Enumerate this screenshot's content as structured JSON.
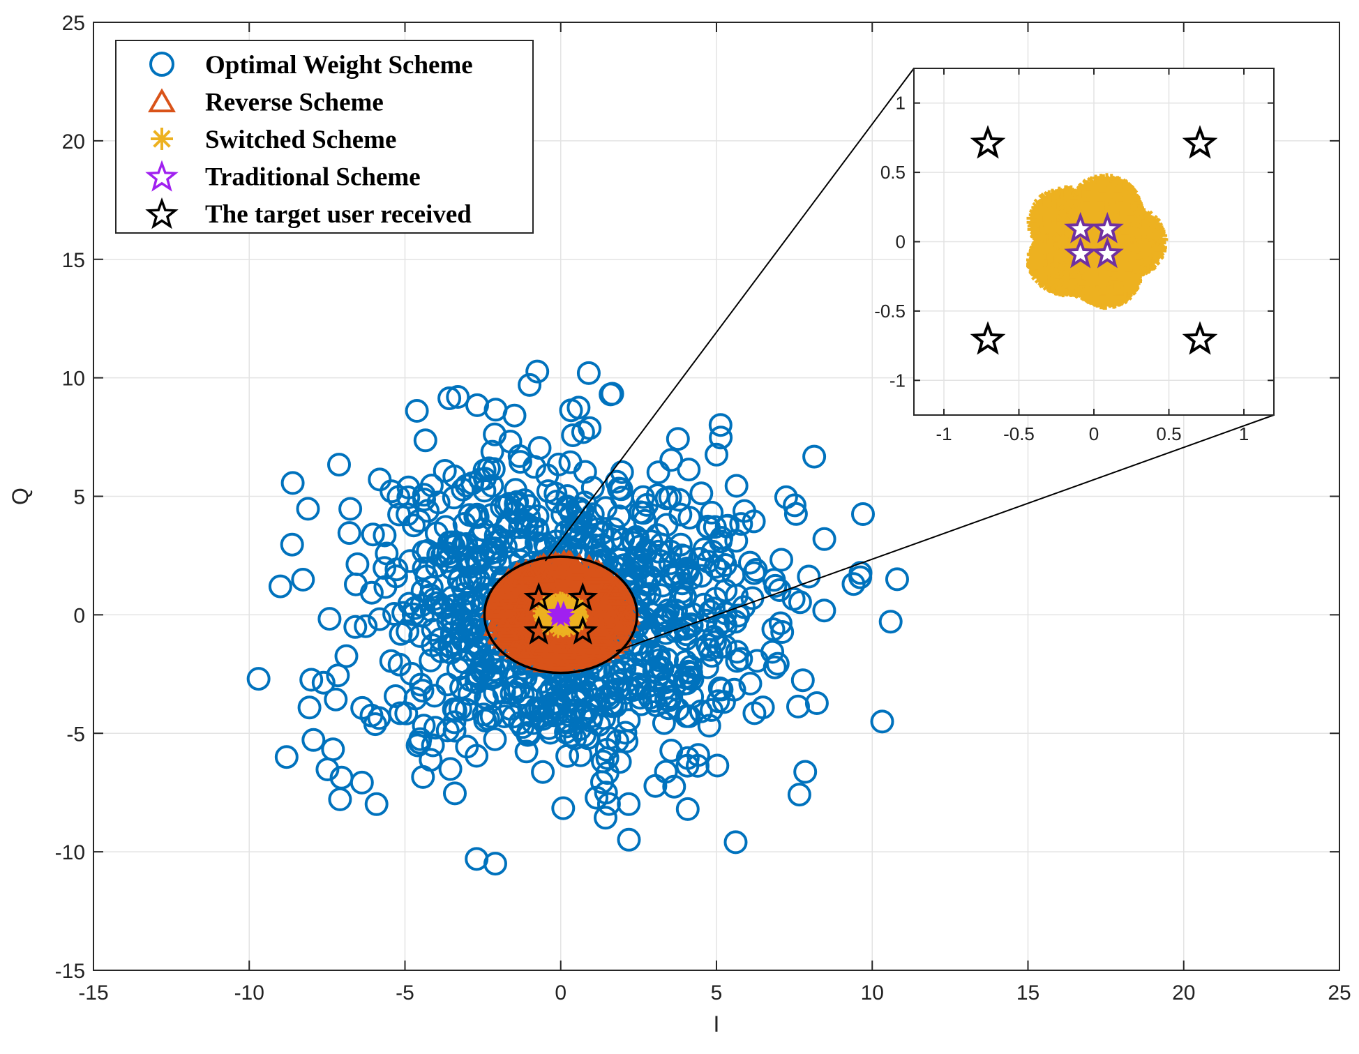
{
  "chart_data": {
    "type": "scatter",
    "title": "",
    "xlabel": "I",
    "ylabel": "Q",
    "xlim": [
      -15,
      25
    ],
    "ylim": [
      -15,
      25
    ],
    "xticks": [
      -15,
      -10,
      -5,
      0,
      5,
      10,
      15,
      20,
      25
    ],
    "yticks": [
      -15,
      -10,
      -5,
      0,
      5,
      10,
      15,
      20,
      25
    ],
    "grid": true,
    "legend_position": "top-left",
    "series": [
      {
        "name": "Optimal Weight Scheme",
        "marker": "circle",
        "color": "#0072BD",
        "distribution": {
          "center": [
            0,
            0
          ],
          "std_dev": 3.3,
          "count": 1000
        },
        "notable_points": [
          [
            10.8,
            1.5
          ],
          [
            9.4,
            1.3
          ],
          [
            -9.0,
            1.2
          ],
          [
            -9.7,
            -2.7
          ],
          [
            -8.8,
            -6.0
          ],
          [
            0.9,
            10.2
          ],
          [
            -1.0,
            9.7
          ],
          [
            -2.1,
            -10.5
          ],
          [
            -2.7,
            -10.3
          ],
          [
            1.6,
            9.3
          ]
        ]
      },
      {
        "name": "Reverse Scheme",
        "marker": "triangle",
        "color": "#D95319",
        "distribution": {
          "center": [
            0,
            0
          ],
          "radius": 2.2
        }
      },
      {
        "name": "Switched Scheme",
        "marker": "asterisk",
        "color": "#EDB120",
        "distribution": {
          "center": [
            0,
            0
          ],
          "radius": 0.52
        }
      },
      {
        "name": "Traditional Scheme",
        "marker": "star",
        "color": "#A020F0",
        "x": [
          -0.09,
          0.09,
          -0.09,
          0.09
        ],
        "y": [
          0.09,
          0.09,
          -0.09,
          -0.09
        ]
      },
      {
        "name": "The target user received",
        "marker": "star",
        "color": "#000000",
        "x": [
          -0.707,
          0.707,
          -0.707,
          0.707
        ],
        "y": [
          0.707,
          0.707,
          -0.707,
          -0.707
        ]
      }
    ],
    "zoom_circle": {
      "center": [
        0,
        0
      ],
      "radius": 2.45
    },
    "inset": {
      "xlim": [
        -1.2,
        1.2
      ],
      "ylim": [
        -1.25,
        1.25
      ],
      "xtick_labels": [
        "-1",
        "-0.5",
        "0",
        "0.5",
        "1"
      ],
      "xticks": [
        -1,
        -0.5,
        0,
        0.5,
        1
      ],
      "ytick_labels": [
        "1",
        "0.5",
        "0",
        "-0.5",
        "-1"
      ],
      "yticks": [
        1,
        0.5,
        0,
        -0.5,
        -1
      ],
      "grid": true
    }
  }
}
